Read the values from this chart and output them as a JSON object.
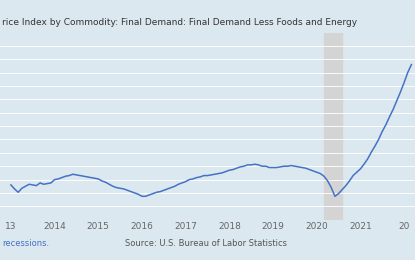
{
  "title": "rice Index by Commodity: Final Demand: Final Demand Less Foods and Energy",
  "source_text": "Source: U.S. Bureau of Labor Statistics",
  "recession_label": "recessions.",
  "bg_color": "#dce8f0",
  "plot_bg_color": "#dce8f0",
  "line_color": "#4472C4",
  "recession_color": "#d4d4d4",
  "recession_start": 2020.167,
  "recession_end": 2020.583,
  "xlim_start": 2012.75,
  "xlim_end": 2022.25,
  "xtick_labels": [
    "13",
    "2014",
    "2015",
    "2016",
    "2017",
    "2018",
    "2019",
    "2020",
    "2021",
    "20"
  ],
  "xtick_positions": [
    2013,
    2014,
    2015,
    2016,
    2017,
    2018,
    2019,
    2020,
    2021,
    2022
  ],
  "data_x": [
    2013.0,
    2013.083,
    2013.167,
    2013.25,
    2013.333,
    2013.417,
    2013.5,
    2013.583,
    2013.667,
    2013.75,
    2013.833,
    2013.917,
    2014.0,
    2014.083,
    2014.167,
    2014.25,
    2014.333,
    2014.417,
    2014.5,
    2014.583,
    2014.667,
    2014.75,
    2014.833,
    2014.917,
    2015.0,
    2015.083,
    2015.167,
    2015.25,
    2015.333,
    2015.417,
    2015.5,
    2015.583,
    2015.667,
    2015.75,
    2015.833,
    2015.917,
    2016.0,
    2016.083,
    2016.167,
    2016.25,
    2016.333,
    2016.417,
    2016.5,
    2016.583,
    2016.667,
    2016.75,
    2016.833,
    2016.917,
    2017.0,
    2017.083,
    2017.167,
    2017.25,
    2017.333,
    2017.417,
    2017.5,
    2017.583,
    2017.667,
    2017.75,
    2017.833,
    2017.917,
    2018.0,
    2018.083,
    2018.167,
    2018.25,
    2018.333,
    2018.417,
    2018.5,
    2018.583,
    2018.667,
    2018.75,
    2018.833,
    2018.917,
    2019.0,
    2019.083,
    2019.167,
    2019.25,
    2019.333,
    2019.417,
    2019.5,
    2019.583,
    2019.667,
    2019.75,
    2019.833,
    2019.917,
    2020.0,
    2020.083,
    2020.167,
    2020.25,
    2020.333,
    2020.417,
    2020.5,
    2020.583,
    2020.667,
    2020.75,
    2020.833,
    2020.917,
    2021.0,
    2021.083,
    2021.167,
    2021.25,
    2021.333,
    2021.417,
    2021.5,
    2021.583,
    2021.667,
    2021.75,
    2021.833,
    2021.917,
    2022.0,
    2022.083,
    2022.167
  ],
  "data_y": [
    105.2,
    104.6,
    104.1,
    104.7,
    105.0,
    105.3,
    105.2,
    105.1,
    105.5,
    105.3,
    105.4,
    105.5,
    106.0,
    106.1,
    106.3,
    106.5,
    106.6,
    106.8,
    106.7,
    106.6,
    106.5,
    106.4,
    106.3,
    106.2,
    106.1,
    105.8,
    105.6,
    105.3,
    105.0,
    104.8,
    104.7,
    104.6,
    104.4,
    104.2,
    104.0,
    103.8,
    103.5,
    103.5,
    103.7,
    103.9,
    104.1,
    104.2,
    104.4,
    104.6,
    104.8,
    105.0,
    105.3,
    105.5,
    105.7,
    106.0,
    106.1,
    106.3,
    106.4,
    106.6,
    106.6,
    106.7,
    106.8,
    106.9,
    107.0,
    107.2,
    107.4,
    107.5,
    107.7,
    107.9,
    108.0,
    108.2,
    108.2,
    108.3,
    108.2,
    108.0,
    108.0,
    107.8,
    107.8,
    107.8,
    107.9,
    108.0,
    108.0,
    108.1,
    108.0,
    107.9,
    107.8,
    107.7,
    107.5,
    107.3,
    107.1,
    106.9,
    106.5,
    105.8,
    104.8,
    103.5,
    103.9,
    104.5,
    105.1,
    105.8,
    106.6,
    107.1,
    107.6,
    108.3,
    109.1,
    110.1,
    111.0,
    112.0,
    113.2,
    114.2,
    115.4,
    116.5,
    117.8,
    119.1,
    120.5,
    122.0,
    123.2
  ],
  "ylim": [
    100,
    128
  ],
  "grid_vals": [
    102,
    104,
    106,
    108,
    110,
    112,
    114,
    116,
    118,
    120,
    122,
    124,
    126
  ],
  "line_width": 1.1
}
